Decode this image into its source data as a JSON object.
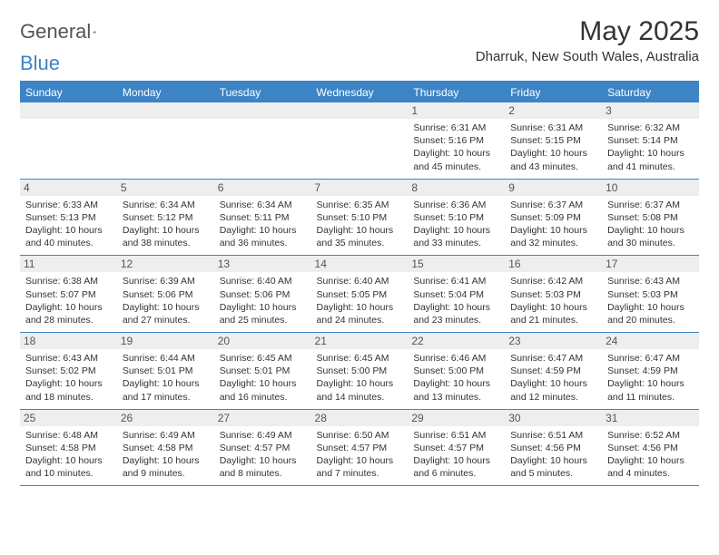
{
  "brand": {
    "part1": "General",
    "part2": "Blue"
  },
  "title": "May 2025",
  "location": "Dharruk, New South Wales, Australia",
  "colors": {
    "accent": "#3d84c6",
    "shade": "#eeeeee",
    "text": "#333333"
  },
  "dayHeaders": [
    "Sunday",
    "Monday",
    "Tuesday",
    "Wednesday",
    "Thursday",
    "Friday",
    "Saturday"
  ],
  "weeks": [
    [
      null,
      null,
      null,
      null,
      {
        "n": "1",
        "sr": "6:31 AM",
        "ss": "5:16 PM",
        "dl": "10 hours and 45 minutes."
      },
      {
        "n": "2",
        "sr": "6:31 AM",
        "ss": "5:15 PM",
        "dl": "10 hours and 43 minutes."
      },
      {
        "n": "3",
        "sr": "6:32 AM",
        "ss": "5:14 PM",
        "dl": "10 hours and 41 minutes."
      }
    ],
    [
      {
        "n": "4",
        "sr": "6:33 AM",
        "ss": "5:13 PM",
        "dl": "10 hours and 40 minutes."
      },
      {
        "n": "5",
        "sr": "6:34 AM",
        "ss": "5:12 PM",
        "dl": "10 hours and 38 minutes."
      },
      {
        "n": "6",
        "sr": "6:34 AM",
        "ss": "5:11 PM",
        "dl": "10 hours and 36 minutes."
      },
      {
        "n": "7",
        "sr": "6:35 AM",
        "ss": "5:10 PM",
        "dl": "10 hours and 35 minutes."
      },
      {
        "n": "8",
        "sr": "6:36 AM",
        "ss": "5:10 PM",
        "dl": "10 hours and 33 minutes."
      },
      {
        "n": "9",
        "sr": "6:37 AM",
        "ss": "5:09 PM",
        "dl": "10 hours and 32 minutes."
      },
      {
        "n": "10",
        "sr": "6:37 AM",
        "ss": "5:08 PM",
        "dl": "10 hours and 30 minutes."
      }
    ],
    [
      {
        "n": "11",
        "sr": "6:38 AM",
        "ss": "5:07 PM",
        "dl": "10 hours and 28 minutes."
      },
      {
        "n": "12",
        "sr": "6:39 AM",
        "ss": "5:06 PM",
        "dl": "10 hours and 27 minutes."
      },
      {
        "n": "13",
        "sr": "6:40 AM",
        "ss": "5:06 PM",
        "dl": "10 hours and 25 minutes."
      },
      {
        "n": "14",
        "sr": "6:40 AM",
        "ss": "5:05 PM",
        "dl": "10 hours and 24 minutes."
      },
      {
        "n": "15",
        "sr": "6:41 AM",
        "ss": "5:04 PM",
        "dl": "10 hours and 23 minutes."
      },
      {
        "n": "16",
        "sr": "6:42 AM",
        "ss": "5:03 PM",
        "dl": "10 hours and 21 minutes."
      },
      {
        "n": "17",
        "sr": "6:43 AM",
        "ss": "5:03 PM",
        "dl": "10 hours and 20 minutes."
      }
    ],
    [
      {
        "n": "18",
        "sr": "6:43 AM",
        "ss": "5:02 PM",
        "dl": "10 hours and 18 minutes."
      },
      {
        "n": "19",
        "sr": "6:44 AM",
        "ss": "5:01 PM",
        "dl": "10 hours and 17 minutes."
      },
      {
        "n": "20",
        "sr": "6:45 AM",
        "ss": "5:01 PM",
        "dl": "10 hours and 16 minutes."
      },
      {
        "n": "21",
        "sr": "6:45 AM",
        "ss": "5:00 PM",
        "dl": "10 hours and 14 minutes."
      },
      {
        "n": "22",
        "sr": "6:46 AM",
        "ss": "5:00 PM",
        "dl": "10 hours and 13 minutes."
      },
      {
        "n": "23",
        "sr": "6:47 AM",
        "ss": "4:59 PM",
        "dl": "10 hours and 12 minutes."
      },
      {
        "n": "24",
        "sr": "6:47 AM",
        "ss": "4:59 PM",
        "dl": "10 hours and 11 minutes."
      }
    ],
    [
      {
        "n": "25",
        "sr": "6:48 AM",
        "ss": "4:58 PM",
        "dl": "10 hours and 10 minutes."
      },
      {
        "n": "26",
        "sr": "6:49 AM",
        "ss": "4:58 PM",
        "dl": "10 hours and 9 minutes."
      },
      {
        "n": "27",
        "sr": "6:49 AM",
        "ss": "4:57 PM",
        "dl": "10 hours and 8 minutes."
      },
      {
        "n": "28",
        "sr": "6:50 AM",
        "ss": "4:57 PM",
        "dl": "10 hours and 7 minutes."
      },
      {
        "n": "29",
        "sr": "6:51 AM",
        "ss": "4:57 PM",
        "dl": "10 hours and 6 minutes."
      },
      {
        "n": "30",
        "sr": "6:51 AM",
        "ss": "4:56 PM",
        "dl": "10 hours and 5 minutes."
      },
      {
        "n": "31",
        "sr": "6:52 AM",
        "ss": "4:56 PM",
        "dl": "10 hours and 4 minutes."
      }
    ]
  ],
  "labels": {
    "sunrise": "Sunrise: ",
    "sunset": "Sunset: ",
    "daylight": "Daylight: "
  }
}
